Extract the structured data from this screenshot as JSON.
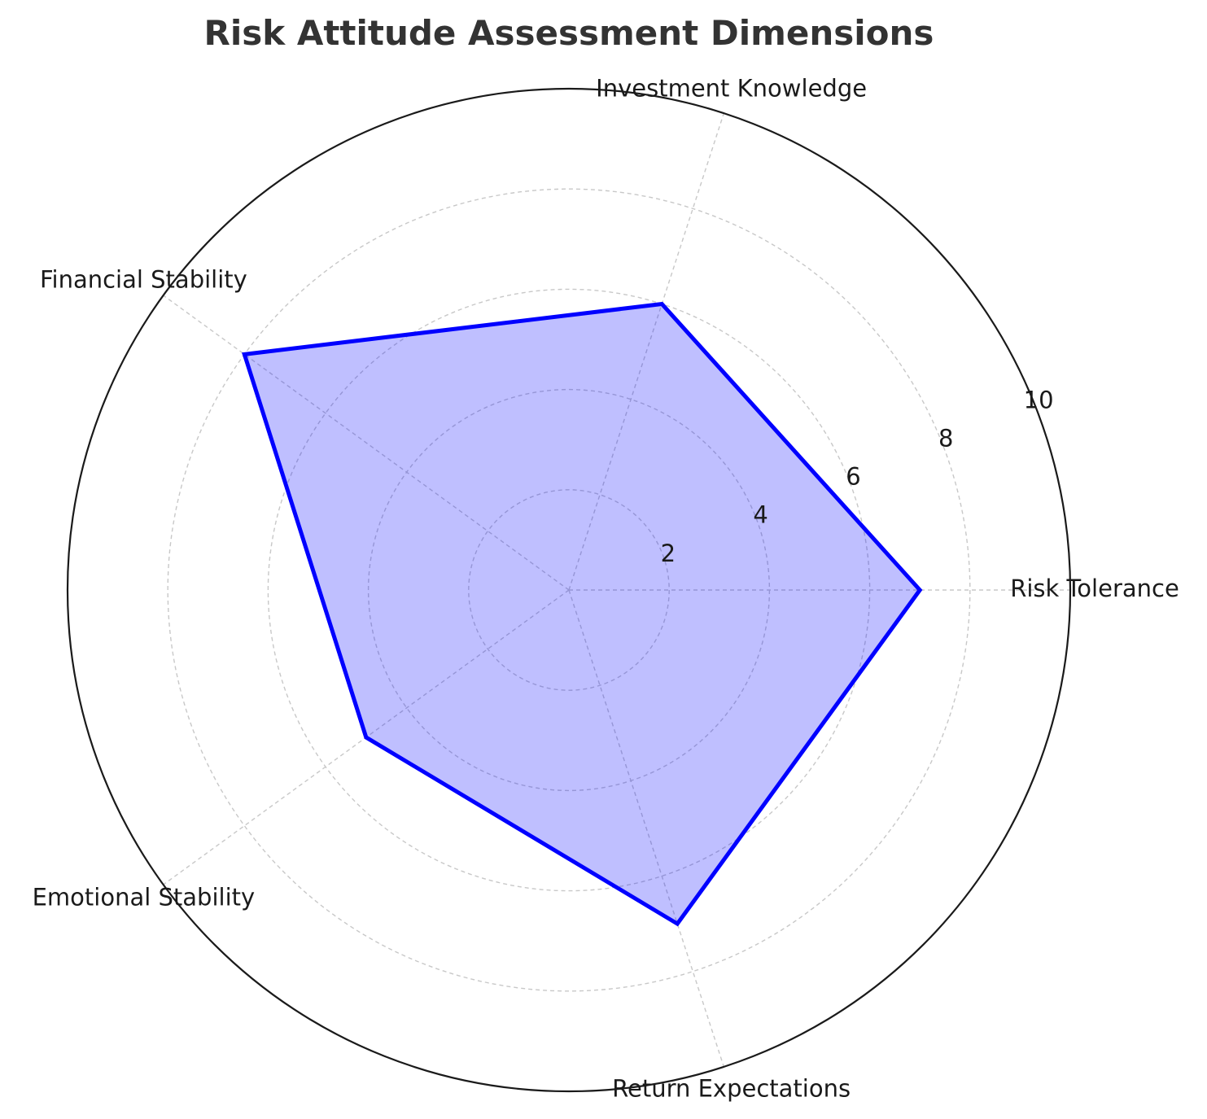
{
  "chart_data": {
    "type": "radar",
    "title": "Risk Attitude Assessment Dimensions",
    "categories": [
      "Risk Tolerance",
      "Investment Knowledge",
      "Financial Stability",
      "Emotional Stability",
      "Return Expectations"
    ],
    "series": [
      {
        "values": [
          7,
          6,
          8,
          5,
          7
        ],
        "color": "#0000ff",
        "fill_color": "#0000ff",
        "fill_opacity": 0.25
      }
    ],
    "rlim": [
      0,
      10
    ],
    "rticks": [
      2,
      4,
      6,
      8,
      10
    ],
    "rtick_labels": [
      "2",
      "4",
      "6",
      "8",
      "10"
    ],
    "grid": true,
    "grid_style": "dashed",
    "start_angle_deg": 0,
    "direction": "counterclockwise"
  }
}
